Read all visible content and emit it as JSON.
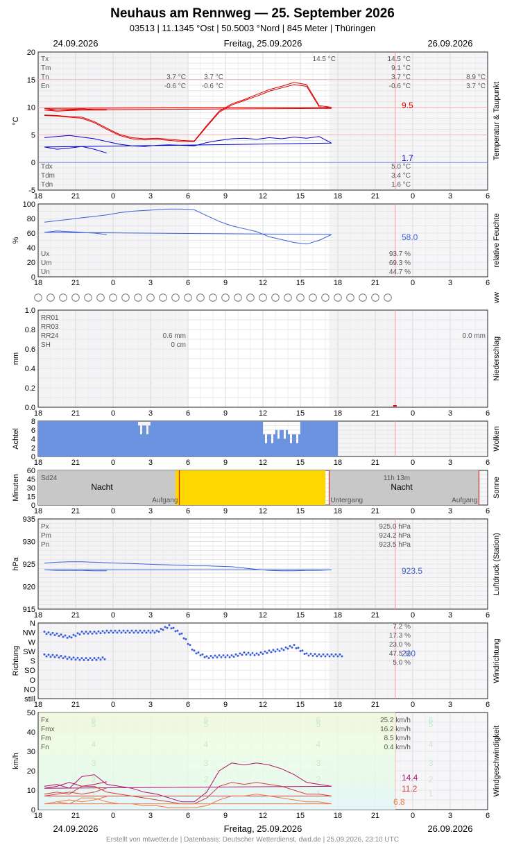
{
  "header": {
    "title": "Neuhaus am Rennweg  —  25. September 2026",
    "subtitle": "03513  |  11.1345 °Ost  |  50.5003 °Nord  |  845 Meter  |  Thüringen",
    "date_left": "24.09.2026",
    "date_center": "Freitag, 25.09.2026",
    "date_right": "26.09.2026"
  },
  "footer": "Erstellt von mtwetter.de | Datenbasis: Deutscher Wetterdienst, dwd.de | 25.09.2026, 23:10 UTC",
  "x_tick_labels": [
    "18",
    "21",
    "0",
    "3",
    "6",
    "9",
    "12",
    "15",
    "18",
    "21",
    "0",
    "3",
    "6"
  ],
  "colors": {
    "temp": "#dd0000",
    "dew": "#0000cc",
    "blue": "#3a5fd9",
    "cloud": "#6b93e0",
    "sun": "#ffd700",
    "wind_fx": "#b0106e",
    "wind_fm": "#d04040",
    "wind_fn": "#f07a40"
  },
  "chart_data": [
    {
      "id": "temperature",
      "type": "line",
      "ylabel": "°C",
      "side_label": "Temperatur & Taupunkt",
      "ylim": [
        -5,
        20
      ],
      "y_ticks": [
        "20",
        "15",
        "10",
        "5",
        "0",
        "-5"
      ],
      "x_hours": [
        18,
        19,
        20,
        21,
        22,
        23,
        0,
        1,
        2,
        3,
        4,
        5,
        6,
        7,
        8,
        9,
        10,
        11,
        12,
        13,
        14,
        15,
        16,
        17,
        18,
        19,
        20,
        21,
        22,
        23
      ],
      "series": [
        {
          "name": "Tx",
          "values": [
            8.6,
            8.5,
            8.3,
            8.2,
            7.4,
            6.2,
            5.1,
            4.5,
            4.3,
            4.4,
            4.2,
            4.0,
            3.9,
            6.7,
            9.3,
            10.6,
            11.4,
            12.3,
            13.2,
            13.8,
            14.5,
            14.1,
            10.3,
            10.0,
            9.8,
            9.5,
            9.6,
            9.7,
            9.6,
            9.6
          ]
        },
        {
          "name": "Tm",
          "values": [
            8.5,
            8.4,
            8.2,
            8.0,
            7.2,
            6.0,
            4.9,
            4.3,
            4.1,
            4.2,
            4.0,
            3.8,
            3.8,
            6.5,
            9.1,
            10.4,
            11.2,
            12.0,
            12.9,
            13.5,
            14.1,
            13.8,
            10.1,
            9.8,
            9.5,
            9.3,
            9.4,
            9.5,
            9.5,
            9.5
          ]
        },
        {
          "name": "Td",
          "values": [
            4.5,
            4.7,
            4.9,
            4.6,
            4.3,
            3.8,
            3.3,
            3.0,
            2.9,
            3.1,
            3.2,
            3.1,
            3.0,
            3.6,
            4.0,
            4.3,
            4.4,
            4.2,
            4.5,
            4.3,
            4.6,
            4.4,
            4.7,
            3.5,
            2.8,
            2.4,
            2.6,
            2.9,
            2.4,
            1.7
          ]
        }
      ],
      "stats_left": {
        "labels": [
          "Tx",
          "Tm",
          "Tn",
          "En"
        ],
        "tn_col1": "3.7 °C",
        "en_col1": "-0.6 °C",
        "tn_col2": "3.7 °C",
        "en_col2": "-0.6 °C"
      },
      "stats_mid": {
        "tx": "14.5 °C",
        "tx_day": "14.5 °C",
        "tm_day": "9.1 °C",
        "tn_day": "3.7 °C",
        "en_day": "-0.6 °C",
        "tn_next": "8.9 °C",
        "en_next": "3.7 °C"
      },
      "stats_dew": {
        "labels": [
          "Tdx",
          "Tdm",
          "Tdn"
        ],
        "values": [
          "5.0 °C",
          "3.4 °C",
          "1.6 °C"
        ]
      },
      "last_values": {
        "temp": "9.5",
        "dew": "1.7"
      }
    },
    {
      "id": "humidity",
      "type": "line",
      "ylabel": "%",
      "side_label": "relative Feuchte",
      "ylim": [
        0,
        100
      ],
      "y_ticks": [
        "100",
        "80",
        "60",
        "40",
        "20",
        "0"
      ],
      "x_hours": [
        18,
        19,
        20,
        21,
        22,
        23,
        0,
        1,
        2,
        3,
        4,
        5,
        6,
        7,
        8,
        9,
        10,
        11,
        12,
        13,
        14,
        15,
        16,
        17,
        18,
        19,
        20,
        21,
        22,
        23
      ],
      "values": [
        75,
        77,
        79,
        81,
        83,
        85,
        88,
        90,
        91,
        92,
        93,
        93,
        92,
        84,
        76,
        70,
        66,
        62,
        55,
        51,
        47,
        45,
        50,
        58,
        61,
        63,
        62,
        61,
        60,
        58
      ],
      "stats": {
        "labels": [
          "Ux",
          "Um",
          "Un"
        ],
        "values": [
          "93.7 %",
          "69.3 %",
          "44.7 %"
        ]
      },
      "last_value": "58.0"
    },
    {
      "id": "ww",
      "type": "scatter",
      "side_label": "ww",
      "symbol_count": 29
    },
    {
      "id": "precipitation",
      "type": "bar",
      "ylabel": "mm",
      "side_label": "Niederschlag",
      "ylim": [
        0,
        1.0
      ],
      "y_ticks": [
        "1.0",
        "0.8",
        "0.6",
        "0.4",
        "0.2",
        "0.0"
      ],
      "values": [],
      "stats": {
        "labels": [
          "RR01",
          "RR03",
          "RR24",
          "SH"
        ],
        "rr24": "0.6 mm",
        "sh": "0 cm",
        "rr24_next": "0.0 mm"
      }
    },
    {
      "id": "clouds",
      "type": "bar",
      "ylabel": "Achtel",
      "side_label": "Wolken",
      "ylim": [
        0,
        8
      ],
      "y_ticks": [
        "8",
        "6",
        "4",
        "2",
        "0"
      ],
      "x_hours": [
        18,
        19,
        20,
        21,
        22,
        23,
        0,
        1,
        2,
        3,
        4,
        5,
        6,
        7,
        8,
        9,
        10,
        11,
        12,
        13,
        14,
        15,
        16,
        17,
        18,
        19,
        20,
        21,
        22,
        23
      ],
      "values": [
        8,
        8,
        7,
        8,
        6,
        5,
        8,
        8,
        7,
        8,
        8,
        8,
        8,
        8,
        8,
        8,
        8,
        8,
        5,
        6,
        5,
        8,
        8,
        8,
        8,
        8,
        8,
        8,
        8,
        8
      ]
    },
    {
      "id": "sunshine",
      "type": "bar",
      "ylabel": "Minuten",
      "side_label": "Sonne",
      "ylim": [
        0,
        60
      ],
      "y_ticks": [
        "60",
        "45",
        "30",
        "15",
        "0"
      ],
      "labels": {
        "sd24": "Sd24",
        "night": "Nacht",
        "sunrise": "Aufgang",
        "sunset": "Untergang",
        "daylength": "11h 13m"
      },
      "sunshine_hours": [
        5,
        6,
        7,
        8,
        9,
        10,
        11,
        12,
        13,
        14,
        15,
        16
      ],
      "sunshine_values": [
        60,
        60,
        60,
        60,
        60,
        60,
        60,
        60,
        60,
        60,
        60,
        60
      ]
    },
    {
      "id": "pressure",
      "type": "line",
      "ylabel": "hPa",
      "side_label": "Luftdruck (Station)",
      "ylim": [
        915,
        935
      ],
      "y_ticks": [
        "935",
        "930",
        "925",
        "920",
        "915"
      ],
      "x_hours": [
        18,
        19,
        20,
        21,
        22,
        23,
        0,
        1,
        2,
        3,
        4,
        5,
        6,
        7,
        8,
        9,
        10,
        11,
        12,
        13,
        14,
        15,
        16,
        17,
        18,
        19,
        20,
        21,
        22,
        23
      ],
      "values": [
        925.2,
        925.4,
        925.5,
        925.5,
        925.4,
        925.3,
        925.2,
        925.1,
        925.0,
        924.9,
        924.8,
        924.7,
        924.6,
        924.6,
        924.5,
        924.4,
        924.1,
        923.8,
        923.6,
        923.5,
        923.5,
        923.6,
        923.6,
        923.7,
        923.7,
        923.6,
        923.6,
        923.6,
        923.5,
        923.5
      ],
      "stats": {
        "labels": [
          "Px",
          "Pm",
          "Pn"
        ],
        "values": [
          "925.0 hPa",
          "924.2 hPa",
          "923.5 hPa"
        ]
      },
      "last_value": "923.5"
    },
    {
      "id": "wind_direction",
      "type": "scatter",
      "ylabel": "Richtung",
      "side_label": "Windrichtung",
      "categories": [
        "N",
        "NW",
        "W",
        "SW",
        "S",
        "SO",
        "O",
        "NO",
        "still"
      ],
      "x_hours": [
        18,
        19,
        20,
        21,
        22,
        23,
        0,
        1,
        2,
        3,
        4,
        5,
        6,
        7,
        8,
        9,
        10,
        11,
        12,
        13,
        14,
        15,
        16,
        17,
        18,
        19,
        20,
        21,
        22,
        23
      ],
      "values": [
        1,
        1.2,
        1.5,
        1.0,
        1.0,
        0.9,
        0.9,
        0.9,
        0.9,
        0.9,
        0.3,
        1.2,
        3.0,
        3.6,
        3.5,
        3.5,
        3.2,
        3.3,
        3.0,
        2.8,
        2.4,
        3.3,
        3.4,
        3.4,
        3.4,
        3.5,
        3.7,
        3.8,
        3.8,
        3.7
      ],
      "stats": {
        "values": [
          "7.2 %",
          "17.3 %",
          "23.0 %",
          "47.5 %",
          "5.0 %"
        ]
      },
      "last_value": "220"
    },
    {
      "id": "wind_speed",
      "type": "line",
      "ylabel": "km/h",
      "side_label": "Windgeschwindigkeit",
      "ylim": [
        0,
        50
      ],
      "y_ticks": [
        "50",
        "40",
        "30",
        "20",
        "10",
        "0"
      ],
      "beaufort": [
        "1",
        "2",
        "3",
        "4",
        "5",
        "6"
      ],
      "x_hours": [
        18,
        19,
        20,
        21,
        22,
        23,
        0,
        1,
        2,
        3,
        4,
        5,
        6,
        7,
        8,
        9,
        10,
        11,
        12,
        13,
        14,
        15,
        16,
        17,
        18,
        19,
        20,
        21,
        22,
        23
      ],
      "series": [
        {
          "name": "Fx",
          "values": [
            12,
            13,
            11,
            17,
            18,
            13,
            12,
            11,
            9,
            8,
            6,
            4,
            4,
            9,
            20,
            24,
            23,
            24,
            23,
            21,
            18,
            14,
            13,
            12,
            11,
            12,
            14,
            12,
            13,
            14.4
          ]
        },
        {
          "name": "Fm",
          "values": [
            8,
            9,
            8,
            12,
            12,
            9,
            8,
            7,
            6,
            5,
            4,
            3,
            3,
            6,
            12,
            14,
            13,
            14,
            13,
            12,
            10,
            8,
            8,
            7,
            7,
            8,
            9,
            8,
            9,
            11.2
          ]
        },
        {
          "name": "Fn",
          "values": [
            3,
            4,
            3,
            6,
            6,
            4,
            3,
            3,
            2,
            2,
            1,
            1,
            1,
            2,
            5,
            7,
            7,
            8,
            7,
            6,
            5,
            4,
            4,
            3,
            3,
            4,
            5,
            4,
            5,
            6.8
          ]
        }
      ],
      "stats": {
        "labels": [
          "Fx",
          "Fmx",
          "Fm",
          "Fn"
        ],
        "values": [
          "25.2 km/h",
          "16.2 km/h",
          "8.5 km/h",
          "0.4 km/h"
        ]
      },
      "last_values": {
        "fx": "14.4",
        "fm": "11.2",
        "fn": "6.8"
      }
    }
  ]
}
